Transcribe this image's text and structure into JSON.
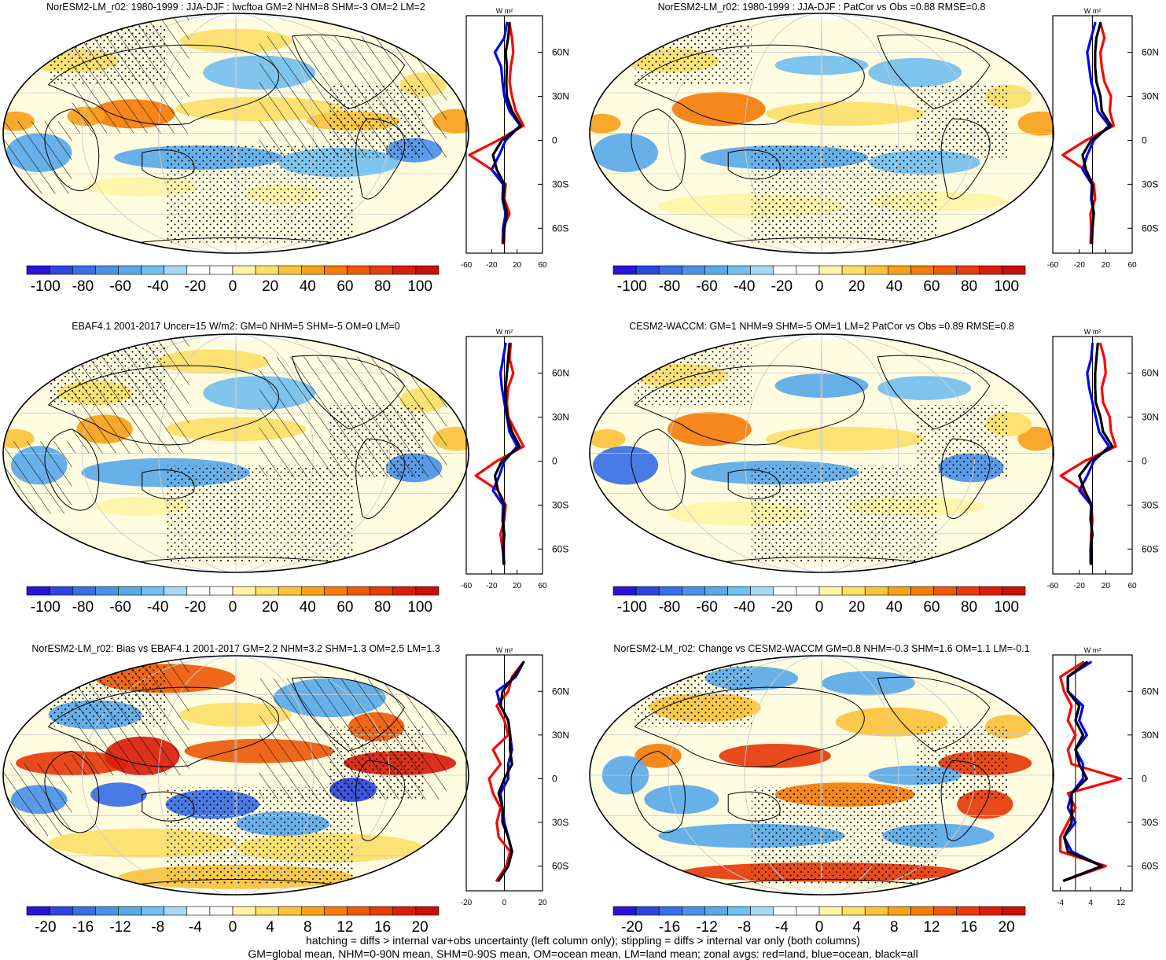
{
  "figure": {
    "footer": [
      "hatching = diffs > internal var+obs uncertainty (left column only); stippling = diffs > internal var only (both columns)",
      "GM=global mean, NHM=0-90N mean, SHM=0-90S mean, OM=ocean mean, LM=land mean; zonal avgs: red=land, blue=ocean, black=all"
    ],
    "colors": {
      "land": "#ff0000",
      "ocean": "#0000ff",
      "all": "#000000",
      "scale": [
        "#2a14d8",
        "#2d46e0",
        "#3b6fe4",
        "#4d91e6",
        "#5aa9e8",
        "#73bfee",
        "#a6d9f4",
        "#ffffff",
        "#ffffff",
        "#fff5a6",
        "#fde069",
        "#fbc33c",
        "#f7a11a",
        "#f47d0c",
        "#ee5a0a",
        "#e63b0a",
        "#d81e0a",
        "#c8100a"
      ]
    }
  },
  "chart_data": [
    {
      "type": "map",
      "panel": "top-left",
      "title": "NorESM2-LM_r02: 1980-1999 : JJA-DJF : lwcftoa GM=2 NHM=8 SHM=-3 OM=2 LM=2",
      "colorbar": {
        "min": -110,
        "max": 110,
        "labels": [
          "-100",
          "-80",
          "-60",
          "-40",
          "-20",
          "0",
          "20",
          "40",
          "60",
          "80",
          "100"
        ]
      },
      "hatching": true,
      "stippling": true,
      "zonal": {
        "unit": "W m²",
        "xlim": [
          -60,
          60
        ],
        "xticks": [
          "-60",
          "-20",
          "20",
          "60"
        ],
        "lat_labels": [
          "60N",
          "30N",
          "0",
          "30S",
          "60S"
        ],
        "lat": [
          80,
          70,
          60,
          50,
          40,
          30,
          20,
          10,
          0,
          -10,
          -20,
          -30,
          -40,
          -50,
          -60,
          -70
        ],
        "land": [
          8,
          12,
          14,
          10,
          8,
          12,
          18,
          30,
          -10,
          -55,
          -20,
          2,
          0,
          8,
          -2,
          -3
        ],
        "ocean": [
          4,
          0,
          -15,
          -5,
          -3,
          0,
          8,
          25,
          2,
          -8,
          -20,
          -2,
          -3,
          2,
          -2,
          -1
        ],
        "all": [
          8,
          6,
          2,
          4,
          3,
          4,
          12,
          26,
          -4,
          -18,
          -12,
          0,
          -2,
          4,
          0,
          -1
        ]
      }
    },
    {
      "type": "map",
      "panel": "top-right",
      "title": "NorESM2-LM_r02: 1980-1999 : JJA-DJF : PatCor vs Obs =0.88 RMSE=0.8",
      "colorbar": {
        "min": -110,
        "max": 110,
        "labels": [
          "-100",
          "-80",
          "-60",
          "-40",
          "-20",
          "0",
          "20",
          "40",
          "60",
          "80",
          "100"
        ]
      },
      "hatching": false,
      "stippling": true,
      "zonal": {
        "unit": "W m²",
        "xlim": [
          -60,
          60
        ],
        "xticks": [
          "-60",
          "-20",
          "20",
          "60"
        ],
        "lat_labels": [
          "60N",
          "30N",
          "0",
          "30S",
          "60S"
        ],
        "lat": [
          80,
          70,
          60,
          50,
          40,
          30,
          20,
          10,
          0,
          -10,
          -20,
          -30,
          -40,
          -50,
          -60,
          -70
        ],
        "land": [
          12,
          18,
          12,
          14,
          18,
          28,
          26,
          32,
          -10,
          -45,
          -12,
          2,
          4,
          -3,
          -2,
          -3
        ],
        "ocean": [
          4,
          -2,
          -8,
          -5,
          -2,
          4,
          8,
          25,
          2,
          -8,
          -15,
          -1,
          -2,
          2,
          -1,
          -1
        ],
        "all": [
          12,
          6,
          4,
          4,
          6,
          12,
          14,
          28,
          -2,
          -15,
          -10,
          0,
          -1,
          2,
          0,
          -1
        ]
      }
    },
    {
      "type": "map",
      "panel": "middle-left",
      "title": "EBAF4.1 2001-2017 Uncer=15 W/m2: GM=0 NHM=5 SHM=-5 OM=0 LM=0",
      "colorbar": {
        "min": -110,
        "max": 110,
        "labels": [
          "-100",
          "-80",
          "-60",
          "-40",
          "-20",
          "0",
          "20",
          "40",
          "60",
          "80",
          "100"
        ]
      },
      "hatching": true,
      "stippling": true,
      "zonal": {
        "unit": "W m²",
        "xlim": [
          -60,
          60
        ],
        "xticks": [
          "-60",
          "-20",
          "20",
          "60"
        ],
        "lat_labels": [
          "60N",
          "30N",
          "0",
          "30S",
          "60S"
        ],
        "lat": [
          80,
          70,
          60,
          50,
          40,
          30,
          20,
          10,
          0,
          -10,
          -20,
          -30,
          -40,
          -50,
          -60,
          -70
        ],
        "land": [
          10,
          8,
          14,
          6,
          4,
          6,
          18,
          30,
          -12,
          -45,
          -10,
          2,
          0,
          -6,
          -3,
          0
        ],
        "ocean": [
          2,
          -2,
          -6,
          -4,
          0,
          4,
          8,
          20,
          0,
          -8,
          -18,
          -2,
          -3,
          0,
          -2,
          -1
        ],
        "all": [
          8,
          6,
          4,
          2,
          2,
          5,
          12,
          24,
          -4,
          -15,
          -10,
          0,
          -2,
          -1,
          -1,
          -1
        ]
      }
    },
    {
      "type": "map",
      "panel": "middle-right",
      "title": "CESM2-WACCM: GM=1 NHM=9 SHM=-5 OM=1 LM=2 PatCor vs Obs =0.89 RMSE=0.8",
      "colorbar": {
        "min": -110,
        "max": 110,
        "labels": [
          "-100",
          "-80",
          "-60",
          "-40",
          "-20",
          "0",
          "20",
          "40",
          "60",
          "80",
          "100"
        ]
      },
      "hatching": false,
      "stippling": true,
      "zonal": {
        "unit": "W m²",
        "xlim": [
          -60,
          60
        ],
        "xticks": [
          "-60",
          "-20",
          "20",
          "60"
        ],
        "lat_labels": [
          "60N",
          "30N",
          "0",
          "30S",
          "60S"
        ],
        "lat": [
          80,
          70,
          60,
          50,
          40,
          30,
          20,
          10,
          0,
          -10,
          -20,
          -30,
          -40,
          -50,
          -60,
          -70
        ],
        "land": [
          12,
          18,
          20,
          14,
          16,
          26,
          28,
          35,
          -12,
          -48,
          -15,
          -2,
          0,
          -2,
          -3,
          -3
        ],
        "ocean": [
          0,
          -2,
          -8,
          -5,
          0,
          5,
          10,
          25,
          2,
          -8,
          -20,
          -2,
          -3,
          0,
          -3,
          -2
        ],
        "all": [
          8,
          6,
          4,
          4,
          5,
          12,
          16,
          30,
          -3,
          -20,
          -12,
          -1,
          -2,
          -1,
          -2,
          -2
        ]
      }
    },
    {
      "type": "map",
      "panel": "bottom-left",
      "title": "NorESM2-LM_r02: Bias vs EBAF4.1 2001-2017 GM=2.2 NHM=3.2 SHM=1.3 OM=2.5 LM=1.3",
      "colorbar": {
        "min": -22,
        "max": 22,
        "labels": [
          "-20",
          "-16",
          "-12",
          "-8",
          "-4",
          "0",
          "4",
          "8",
          "12",
          "16",
          "20"
        ]
      },
      "hatching": true,
      "stippling": true,
      "zonal": {
        "unit": "W m²",
        "xlim": [
          -20,
          20
        ],
        "xticks": [
          "-20",
          "0",
          "20"
        ],
        "lat_labels": [
          "60N",
          "30N",
          "0",
          "30S",
          "60S"
        ],
        "lat": [
          80,
          70,
          60,
          50,
          40,
          30,
          20,
          10,
          0,
          -10,
          -20,
          -30,
          -40,
          -50,
          -60,
          -70
        ],
        "land": [
          10,
          4,
          2,
          -4,
          0,
          2,
          -6,
          -2,
          -8,
          -6,
          -2,
          -4,
          -3,
          3,
          1,
          -4
        ],
        "ocean": [
          10,
          6,
          -4,
          -2,
          2,
          3,
          4,
          2,
          2,
          -2,
          -1,
          0,
          2,
          4,
          2,
          -3
        ],
        "all": [
          10,
          5,
          -1,
          -2,
          2,
          3,
          3,
          4,
          0,
          -3,
          -1,
          -1,
          2,
          4,
          2,
          -3
        ]
      }
    },
    {
      "type": "map",
      "panel": "bottom-right",
      "title": "NorESM2-LM_r02: Change vs CESM2-WACCM GM=0.8 NHM=-0.3 SHM=1.6 OM=1.1 LM=-0.1",
      "colorbar": {
        "min": -22,
        "max": 22,
        "labels": [
          "-20",
          "-16",
          "-12",
          "-8",
          "-4",
          "0",
          "4",
          "8",
          "12",
          "16",
          "20"
        ]
      },
      "hatching": false,
      "stippling": true,
      "zonal": {
        "unit": "W m²",
        "xlim": [
          -6,
          15
        ],
        "xticks": [
          "-4",
          "4",
          "12"
        ],
        "lat_labels": [
          "60N",
          "30N",
          "0",
          "30S",
          "60S"
        ],
        "lat": [
          80,
          70,
          60,
          50,
          40,
          30,
          20,
          10,
          0,
          -10,
          -20,
          -30,
          -40,
          -50,
          -60,
          -70
        ],
        "land": [
          2,
          -4,
          -3,
          -1,
          -2,
          0,
          -2,
          -1,
          12,
          -2,
          0,
          -2,
          -4,
          -4,
          8,
          -3
        ],
        "ocean": [
          4,
          -2,
          -2,
          2,
          1,
          3,
          0,
          2,
          2,
          -1,
          -2,
          0,
          -3,
          -1,
          7,
          -3
        ],
        "all": [
          3,
          -2,
          -2,
          1,
          0,
          2,
          0,
          1,
          3,
          -1,
          -1,
          -1,
          -3,
          -2,
          7,
          -3
        ]
      }
    }
  ]
}
